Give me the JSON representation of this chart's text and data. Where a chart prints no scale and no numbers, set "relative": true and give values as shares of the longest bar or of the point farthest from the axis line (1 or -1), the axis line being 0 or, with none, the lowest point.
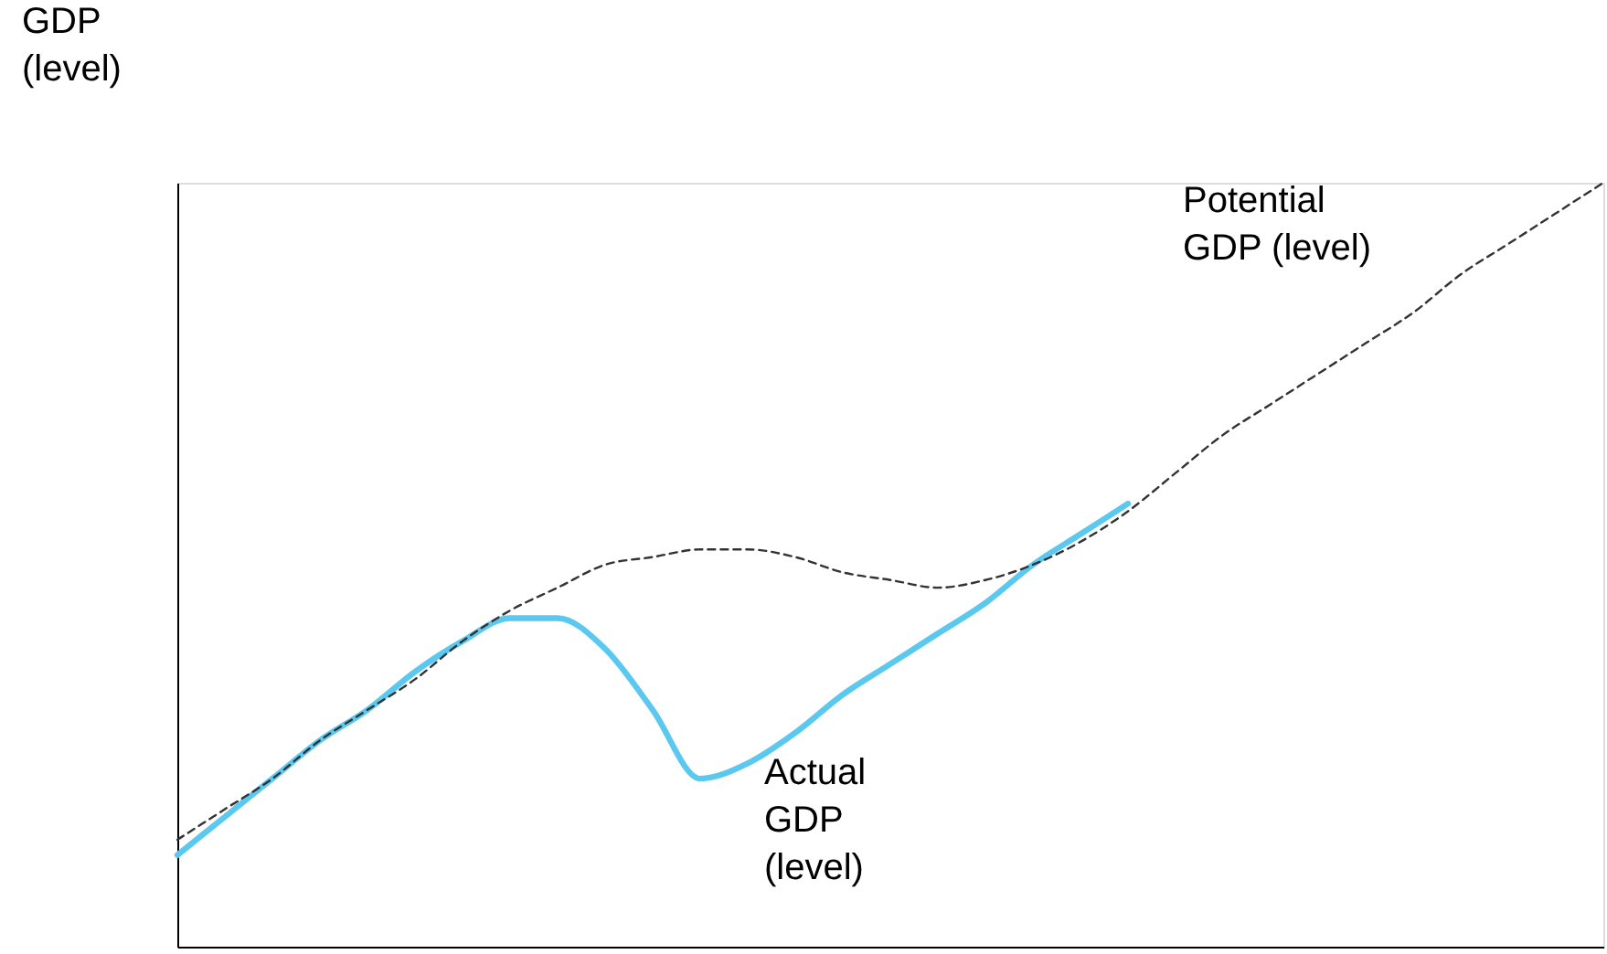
{
  "chart_data": {
    "type": "line",
    "relative": true,
    "ylabel": "GDP (level)",
    "categories": [
      null,
      null,
      null,
      null,
      null,
      null,
      null,
      null,
      null,
      null,
      null,
      null,
      null,
      null,
      null,
      null,
      null,
      null,
      null,
      null,
      null,
      null,
      null,
      null,
      null,
      null,
      null,
      null,
      null,
      null,
      null
    ],
    "series": [
      {
        "name": "Potential\nGDP (level)",
        "color": "#333333",
        "line_style": "dashed",
        "values": [
          0.14,
          0.18,
          0.22,
          0.27,
          0.31,
          0.35,
          0.4,
          0.44,
          0.47,
          0.5,
          0.51,
          0.52,
          0.52,
          0.51,
          0.49,
          0.48,
          0.47,
          0.48,
          0.5,
          0.53,
          0.57,
          0.62,
          0.67,
          0.71,
          0.75,
          0.79,
          0.83,
          0.88,
          0.92,
          0.96,
          1
        ]
      },
      {
        "name": "Actual\nGDP\n(level)",
        "color": "#5bc8f0",
        "line_style": "solid",
        "values": [
          0.12,
          0.17,
          0.22,
          0.27,
          0.31,
          0.36,
          0.4,
          0.43,
          0.43,
          0.39,
          0.31,
          0.22,
          0.24,
          0.28,
          0.33,
          0.37,
          0.41,
          0.45,
          0.5,
          0.54,
          0.58,
          null,
          null,
          null,
          null,
          null,
          null,
          null,
          null,
          null,
          null
        ]
      }
    ]
  }
}
